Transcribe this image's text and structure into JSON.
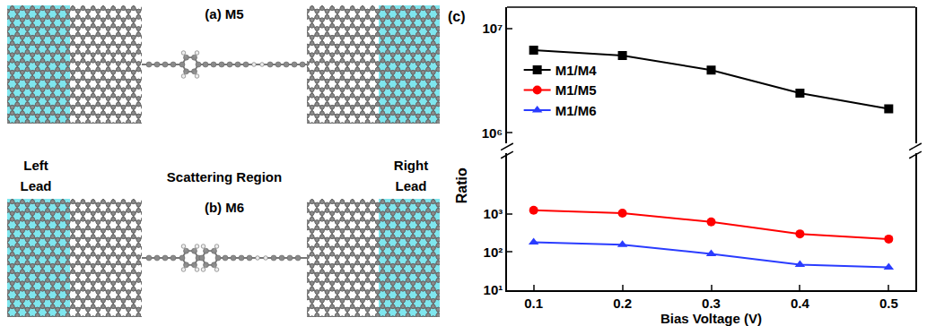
{
  "diagram": {
    "panels": [
      {
        "label": "(a) M5",
        "rings": 1
      },
      {
        "label": "(b) M6",
        "rings": 2
      }
    ],
    "left_lead": [
      "Left",
      "Lead"
    ],
    "scattering_region": "Scattering Region",
    "right_lead": [
      "Right",
      "Lead"
    ]
  },
  "chart_data": {
    "type": "line",
    "panel_label": "(c)",
    "x_label": "Bias Voltage (V)",
    "y_label": "Ratio",
    "x": [
      0.1,
      0.2,
      0.3,
      0.4,
      0.5
    ],
    "xlim": [
      0.07,
      0.53
    ],
    "xticks": [
      0.1,
      0.2,
      0.3,
      0.4,
      0.5
    ],
    "log": "y",
    "ylim": [
      10,
      40000
    ],
    "yticks": [
      {
        "value": 10,
        "label": "10¹"
      },
      {
        "value": 100,
        "label": "10²"
      },
      {
        "value": 1000,
        "label": "10³"
      }
    ],
    "y2lim": [
      800000,
      16000000
    ],
    "y2ticks": [
      {
        "value": 1000000,
        "label": "10⁶"
      },
      {
        "value": 10000000,
        "label": "10⁷"
      }
    ],
    "legend": "upper left",
    "series": [
      {
        "name": "M1/M4",
        "color": "#000000",
        "marker": "square",
        "axis": "y2",
        "values": [
          6200000,
          5500000,
          4000000,
          2400000,
          1700000
        ]
      },
      {
        "name": "M1/M5",
        "color": "#ff0000",
        "marker": "circle",
        "values": [
          1250,
          1050,
          620,
          300,
          220
        ]
      },
      {
        "name": "M1/M6",
        "color": "#2a3cff",
        "marker": "triangle-up",
        "values": [
          180,
          155,
          90,
          47,
          40
        ]
      }
    ]
  }
}
